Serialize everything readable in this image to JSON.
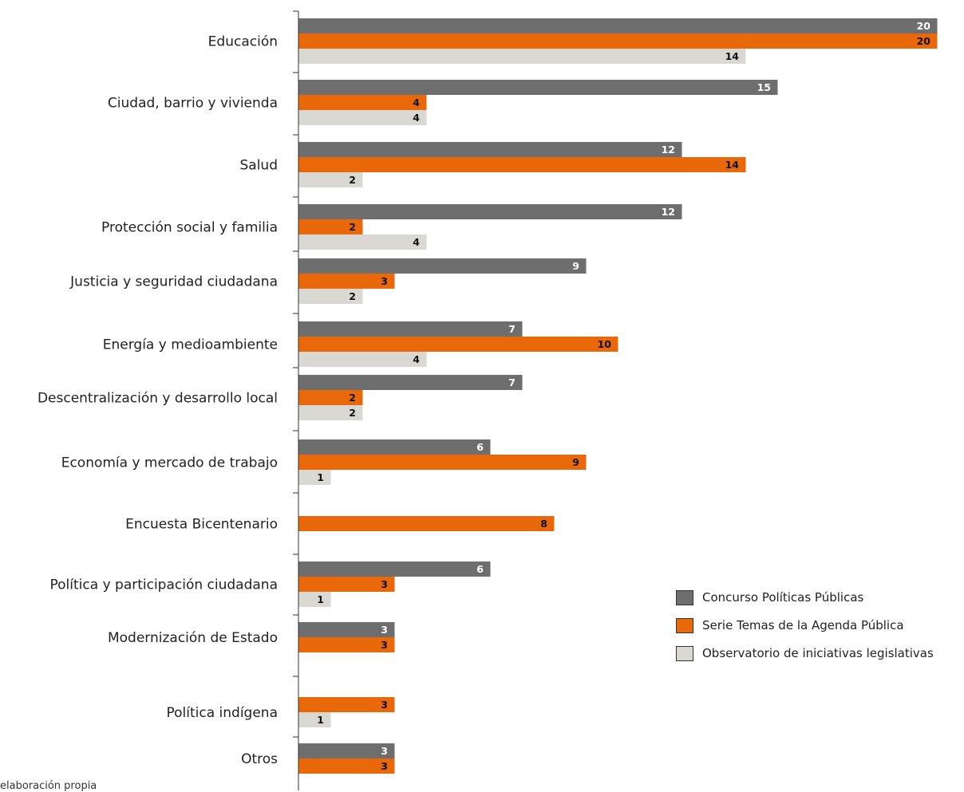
{
  "chart_data": {
    "type": "bar",
    "orientation": "horizontal",
    "categories": [
      "Educación",
      "Ciudad, barrio y vivienda",
      "Salud",
      "Protección social y familia",
      "Justicia y seguridad ciudadana",
      "Energía y medioambiente",
      "Descentralización y desarrollo local",
      "Economía y mercado de trabajo",
      "Encuesta Bicentenario",
      "Política y participación ciudadana",
      "Modernización de Estado",
      "Política indígena",
      "Otros"
    ],
    "series": [
      {
        "name": "Concurso Políticas Públicas",
        "color": "#6e6e6e",
        "label_color": "#ffffff",
        "values": [
          20,
          15,
          12,
          12,
          9,
          7,
          7,
          6,
          null,
          6,
          3,
          null,
          3
        ]
      },
      {
        "name": "Serie Temas de la Agenda Pública",
        "color": "#e8680a",
        "label_color": "#111111",
        "values": [
          20,
          4,
          14,
          2,
          3,
          10,
          2,
          9,
          8,
          3,
          3,
          3,
          3
        ]
      },
      {
        "name": "Observatorio de iniciativas legislativas",
        "color": "#d9d8d3",
        "label_color": "#111111",
        "values": [
          14,
          4,
          2,
          4,
          2,
          4,
          2,
          1,
          null,
          1,
          null,
          1,
          null
        ]
      }
    ],
    "xlim": [
      0,
      20
    ],
    "legend_position": "bottom-right",
    "grid": false
  },
  "source_note": "elaboración propia"
}
